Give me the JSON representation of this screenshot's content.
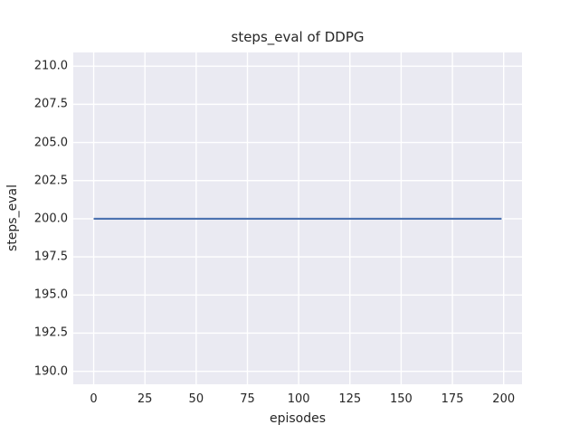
{
  "chart_data": {
    "type": "line",
    "title": "steps_eval of DDPG",
    "xlabel": "episodes",
    "ylabel": "steps_eval",
    "xlim": [
      -9.95,
      208.95
    ],
    "ylim": [
      189.15,
      210.9
    ],
    "x_ticks": [
      {
        "value": 0,
        "label": "0"
      },
      {
        "value": 25,
        "label": "25"
      },
      {
        "value": 50,
        "label": "50"
      },
      {
        "value": 75,
        "label": "75"
      },
      {
        "value": 100,
        "label": "100"
      },
      {
        "value": 125,
        "label": "125"
      },
      {
        "value": 150,
        "label": "150"
      },
      {
        "value": 175,
        "label": "175"
      },
      {
        "value": 200,
        "label": "200"
      }
    ],
    "y_ticks": [
      {
        "value": 190.0,
        "label": "190.0"
      },
      {
        "value": 192.5,
        "label": "192.5"
      },
      {
        "value": 195.0,
        "label": "195.0"
      },
      {
        "value": 197.5,
        "label": "197.5"
      },
      {
        "value": 200.0,
        "label": "200.0"
      },
      {
        "value": 202.5,
        "label": "202.5"
      },
      {
        "value": 205.0,
        "label": "205.0"
      },
      {
        "value": 207.5,
        "label": "207.5"
      },
      {
        "value": 210.0,
        "label": "210.0"
      }
    ],
    "grid": true,
    "legend_position": "none",
    "series": [
      {
        "name": "steps_eval of DDPG",
        "color": "#4c72b0",
        "line_width": 2.2,
        "x": [
          0,
          199
        ],
        "y": [
          200,
          200
        ],
        "description": "constant value 200 for every episode from 0 to 199"
      }
    ],
    "styles": {
      "plot_background": "#eaeaf2",
      "grid_color": "#ffffff",
      "grid_line_width": 1.4,
      "text_color": "#262626",
      "figure_background": "#ffffff"
    }
  }
}
